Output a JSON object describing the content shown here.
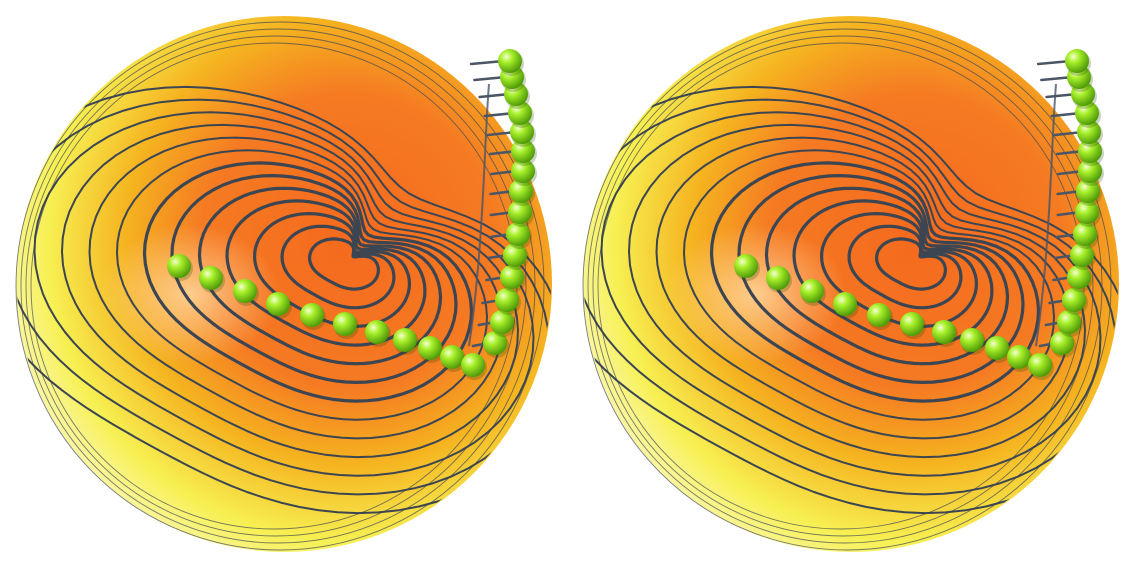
{
  "scene": {
    "description_colors": {
      "background": "#ffffff",
      "sphere_outer": "#f7f260",
      "sphere_mid": "#f5b420",
      "sphere_inner": "#f56a1e",
      "contour": "#3c4552",
      "bead": "#8ee61c",
      "bead_highlight": "#e9ffb0",
      "hair": "#4a5566"
    },
    "views": [
      "left-view",
      "right-view"
    ],
    "bead_count": 26
  }
}
